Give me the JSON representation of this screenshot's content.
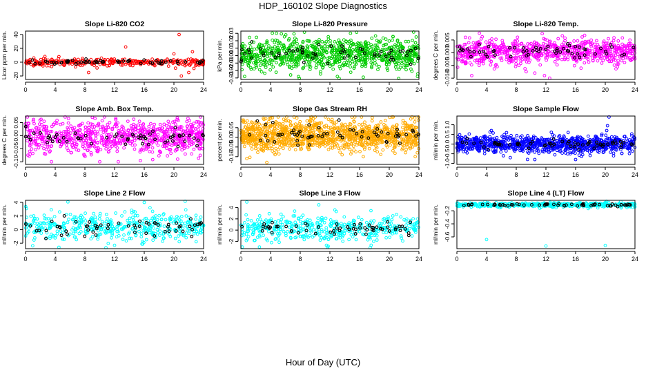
{
  "page": {
    "title": "HDP_160102  Slope Diagnostics",
    "x_axis_title": "Hour of Day (UTC)"
  },
  "chart_data": [
    {
      "type": "scatter",
      "title": "Slope Li-820 CO2",
      "ylabel": "Licor ppm per min.",
      "color": "#ff0000",
      "x_ticks": [
        0,
        4,
        8,
        12,
        16,
        20,
        24
      ],
      "y_ticks": [
        "-20",
        "0",
        "20",
        "40"
      ],
      "y_tick_values": [
        -20,
        0,
        20,
        40
      ],
      "xlim": [
        0,
        24
      ],
      "ylim": [
        -25,
        45
      ],
      "center": 0,
      "spread": 2.5,
      "point_count": 300,
      "outliers": [
        [
          13.5,
          22
        ],
        [
          20.7,
          40
        ],
        [
          21.5,
          -5
        ],
        [
          20,
          12
        ],
        [
          22.5,
          15
        ],
        [
          4.5,
          8
        ],
        [
          8.5,
          -15
        ],
        [
          21,
          -20
        ],
        [
          22,
          -15
        ],
        [
          22.7,
          -9
        ]
      ]
    },
    {
      "type": "scatter",
      "title": "Slope Li-820 Pressure",
      "ylabel": "kPa per min.",
      "color": "#00cc00",
      "x_ticks": [
        0,
        4,
        8,
        12,
        16,
        20,
        24
      ],
      "y_ticks": [
        "-0.03",
        "-0.02",
        "-0.01",
        "0.00",
        "0.01",
        "0.02",
        "0.03"
      ],
      "y_tick_values": [
        -0.03,
        -0.02,
        -0.01,
        0.0,
        0.01,
        0.02,
        0.03
      ],
      "xlim": [
        0,
        24
      ],
      "ylim": [
        -0.032,
        0.033
      ],
      "center": 0.002,
      "spread": 0.011,
      "point_count": 900,
      "outliers": [
        [
          4.8,
          0.03
        ],
        [
          0.5,
          -0.028
        ],
        [
          13,
          -0.028
        ],
        [
          16.5,
          -0.029
        ],
        [
          23.8,
          -0.028
        ]
      ]
    },
    {
      "type": "scatter",
      "title": "Slope Li-820 Temp.",
      "ylabel": "degrees C per min.",
      "color": "#ff00ff",
      "x_ticks": [
        0,
        4,
        8,
        12,
        16,
        20,
        24
      ],
      "y_ticks": [
        "-0.010",
        "-0.005",
        "0.000",
        "0.005"
      ],
      "y_tick_values": [
        -0.01,
        -0.005,
        0.0,
        0.005
      ],
      "xlim": [
        0,
        24
      ],
      "ylim": [
        -0.0105,
        0.0085
      ],
      "center": 0.0005,
      "spread": 0.0024,
      "point_count": 800,
      "outliers": [
        [
          11.8,
          -0.009
        ],
        [
          10.5,
          -0.008
        ],
        [
          11.5,
          0.0075
        ],
        [
          12.5,
          -0.01
        ],
        [
          2,
          -0.009
        ]
      ]
    },
    {
      "type": "scatter",
      "title": "Slope Amb. Box Temp.",
      "ylabel": "degrees C per min.",
      "color": "#ff00ff",
      "x_ticks": [
        0,
        4,
        8,
        12,
        16,
        20,
        24
      ],
      "y_ticks": [
        "-0.10",
        "-0.05",
        "0.00",
        "0.05"
      ],
      "y_tick_values": [
        -0.1,
        -0.05,
        0.0,
        0.05
      ],
      "xlim": [
        0,
        24
      ],
      "ylim": [
        -0.11,
        0.075
      ],
      "center": -0.005,
      "spread": 0.03,
      "point_count": 800,
      "outliers": [
        [
          9,
          0.07
        ],
        [
          10,
          -0.1
        ],
        [
          12.5,
          -0.1
        ],
        [
          3.5,
          -0.1
        ],
        [
          20.5,
          -0.09
        ]
      ]
    },
    {
      "type": "scatter",
      "title": "Slope Gas Stream RH",
      "ylabel": "percent per min.",
      "color": "#ffaa00",
      "x_ticks": [
        0,
        4,
        8,
        12,
        16,
        20,
        24
      ],
      "y_ticks": [
        "-0.10",
        "-0.05",
        "0.00",
        "0.05"
      ],
      "y_tick_values": [
        -0.1,
        -0.05,
        0.0,
        0.05
      ],
      "xlim": [
        0,
        24
      ],
      "ylim": [
        -0.14,
        0.11
      ],
      "center": 0.01,
      "spread": 0.04,
      "point_count": 1200,
      "outliers": [
        [
          0.8,
          -0.11
        ],
        [
          3.5,
          -0.13
        ],
        [
          16.5,
          -0.1
        ],
        [
          23.5,
          -0.1
        ]
      ]
    },
    {
      "type": "scatter",
      "title": "Slope Sample Flow",
      "ylabel": "ml/min per min.",
      "color": "#0000ff",
      "x_ticks": [
        0,
        4,
        8,
        12,
        16,
        20,
        24
      ],
      "y_ticks": [
        "-1.0",
        "-0.5",
        "0.0",
        "0.5",
        "1.0"
      ],
      "y_tick_values": [
        -1.0,
        -0.5,
        0.0,
        0.5,
        1.0
      ],
      "xlim": [
        0,
        24
      ],
      "ylim": [
        -1.05,
        1.45
      ],
      "center": 0.0,
      "spread": 0.22,
      "point_count": 900,
      "outliers": [
        [
          20.5,
          1.4
        ],
        [
          20.3,
          0.95
        ],
        [
          20.2,
          0.7
        ],
        [
          7.2,
          -0.7
        ],
        [
          10.5,
          -0.8
        ],
        [
          16,
          -0.8
        ]
      ]
    },
    {
      "type": "scatter",
      "title": "Slope Line 2 Flow",
      "ylabel": "ml/min per min.",
      "color": "#00ffff",
      "x_ticks": [
        0,
        4,
        8,
        12,
        16,
        20,
        24
      ],
      "y_ticks": [
        "-2",
        "0",
        "2",
        "4"
      ],
      "y_tick_values": [
        -2,
        0,
        2,
        4
      ],
      "xlim": [
        0,
        24
      ],
      "ylim": [
        -2.8,
        4.3
      ],
      "center": 0.4,
      "spread": 1.0,
      "point_count": 450,
      "outliers": [
        [
          16,
          4
        ],
        [
          4.5,
          -2.6
        ],
        [
          12,
          -2.3
        ]
      ]
    },
    {
      "type": "scatter",
      "title": "Slope Line 3 Flow",
      "ylabel": "ml/min per min.",
      "color": "#00ffff",
      "x_ticks": [
        0,
        4,
        8,
        12,
        16,
        20,
        24
      ],
      "y_ticks": [
        "-2",
        "0",
        "2",
        "4"
      ],
      "y_tick_values": [
        -2,
        0,
        2,
        4
      ],
      "xlim": [
        0,
        24
      ],
      "ylim": [
        -3.3,
        5.3
      ],
      "center": 0.3,
      "spread": 1.1,
      "point_count": 450,
      "outliers": [
        [
          0.8,
          5
        ],
        [
          10.5,
          4.5
        ],
        [
          0.2,
          -3
        ],
        [
          2.5,
          -3
        ]
      ]
    },
    {
      "type": "scatter",
      "title": "Slope Line 4 (LT) Flow",
      "ylabel": "ml/min per min.",
      "color": "#00ffff",
      "x_ticks": [
        0,
        4,
        8,
        12,
        16,
        20,
        24
      ],
      "y_ticks": [
        "-0.6",
        "-0.4",
        "-0.2"
      ],
      "y_tick_values": [
        -0.6,
        -0.4,
        -0.2
      ],
      "xlim": [
        0,
        24
      ],
      "ylim": [
        -0.78,
        -0.04
      ],
      "center": -0.11,
      "spread": 0.018,
      "point_count": 450,
      "outliers": [
        [
          4,
          -0.64
        ],
        [
          12,
          -0.74
        ],
        [
          20,
          -0.73
        ]
      ]
    }
  ]
}
